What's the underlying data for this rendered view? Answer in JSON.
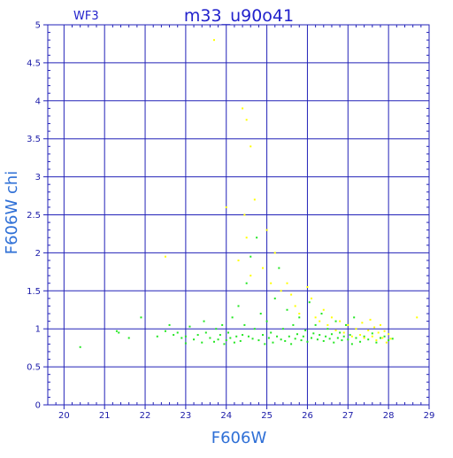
{
  "chart_data": {
    "type": "scatter",
    "title": "m33_u90o41",
    "chip_label": "WF3",
    "xlabel": "F606W",
    "ylabel": "F606W chi",
    "xlim": [
      19.6,
      29.0
    ],
    "ylim": [
      0,
      5
    ],
    "x_ticks": [
      "20",
      "21",
      "22",
      "23",
      "24",
      "25",
      "26",
      "27",
      "28",
      "29"
    ],
    "y_ticks": [
      "0",
      "0.5",
      "1",
      "1.5",
      "2",
      "2.5",
      "3",
      "3.5",
      "4",
      "4.5",
      "5"
    ],
    "grid": true,
    "colors": {
      "axes": "#2222b8",
      "grid": "#2222b8",
      "series_bright": "#22e622",
      "series_faint": "#ffff00"
    },
    "series": [
      {
        "color": "#22e622",
        "points": [
          [
            20.4,
            0.76
          ],
          [
            21.3,
            0.97
          ],
          [
            21.35,
            0.95
          ],
          [
            21.6,
            0.88
          ],
          [
            21.9,
            1.15
          ],
          [
            22.3,
            0.9
          ],
          [
            22.5,
            0.97
          ],
          [
            22.6,
            1.05
          ],
          [
            22.7,
            0.92
          ],
          [
            22.8,
            0.95
          ],
          [
            22.9,
            0.88
          ],
          [
            23.0,
            0.9
          ],
          [
            23.0,
            0.81
          ],
          [
            23.1,
            1.03
          ],
          [
            23.2,
            0.86
          ],
          [
            23.3,
            0.92
          ],
          [
            23.4,
            0.82
          ],
          [
            23.45,
            1.1
          ],
          [
            23.5,
            0.95
          ],
          [
            23.6,
            0.88
          ],
          [
            23.7,
            0.83
          ],
          [
            23.75,
            1.0
          ],
          [
            23.8,
            0.86
          ],
          [
            23.85,
            0.92
          ],
          [
            23.9,
            1.05
          ],
          [
            23.95,
            0.8
          ],
          [
            24.0,
            0.85
          ],
          [
            24.05,
            0.95
          ],
          [
            24.1,
            0.88
          ],
          [
            24.15,
            1.15
          ],
          [
            24.2,
            0.82
          ],
          [
            24.25,
            0.9
          ],
          [
            24.3,
            1.3
          ],
          [
            24.35,
            0.84
          ],
          [
            24.4,
            0.92
          ],
          [
            24.45,
            1.05
          ],
          [
            24.5,
            1.6
          ],
          [
            24.55,
            0.9
          ],
          [
            24.6,
            1.95
          ],
          [
            24.65,
            0.87
          ],
          [
            24.7,
            1.0
          ],
          [
            24.75,
            2.2
          ],
          [
            24.8,
            0.85
          ],
          [
            24.85,
            1.2
          ],
          [
            24.9,
            0.92
          ],
          [
            24.95,
            0.8
          ],
          [
            25.0,
            1.1
          ],
          [
            25.05,
            0.88
          ],
          [
            25.1,
            0.95
          ],
          [
            25.15,
            0.82
          ],
          [
            25.2,
            1.4
          ],
          [
            25.25,
            0.9
          ],
          [
            25.3,
            1.8
          ],
          [
            25.35,
            0.86
          ],
          [
            25.4,
            1.0
          ],
          [
            25.45,
            0.84
          ],
          [
            25.5,
            1.25
          ],
          [
            25.55,
            0.9
          ],
          [
            25.6,
            0.8
          ],
          [
            25.65,
            1.05
          ],
          [
            25.7,
            0.87
          ],
          [
            25.75,
            0.93
          ],
          [
            25.8,
            1.15
          ],
          [
            25.85,
            0.85
          ],
          [
            25.9,
            0.9
          ],
          [
            25.95,
            0.98
          ],
          [
            26.0,
            0.83
          ],
          [
            26.05,
            1.35
          ],
          [
            26.1,
            0.88
          ],
          [
            26.15,
            0.94
          ],
          [
            26.2,
            1.05
          ],
          [
            26.25,
            0.86
          ],
          [
            26.3,
            0.92
          ],
          [
            26.35,
            1.2
          ],
          [
            26.4,
            0.84
          ],
          [
            26.45,
            0.9
          ],
          [
            26.5,
            1.0
          ],
          [
            26.55,
            0.87
          ],
          [
            26.6,
            0.93
          ],
          [
            26.65,
            0.82
          ],
          [
            26.7,
            1.1
          ],
          [
            26.75,
            0.88
          ],
          [
            26.8,
            0.95
          ],
          [
            26.85,
            0.85
          ],
          [
            26.9,
            0.9
          ],
          [
            26.95,
            1.05
          ],
          [
            27.0,
            0.86
          ],
          [
            27.05,
            0.92
          ],
          [
            27.1,
            0.8
          ],
          [
            27.15,
            1.15
          ],
          [
            27.2,
            0.88
          ],
          [
            27.3,
            0.83
          ],
          [
            27.4,
            0.9
          ],
          [
            27.5,
            0.86
          ],
          [
            27.6,
            0.94
          ],
          [
            27.7,
            0.82
          ],
          [
            27.8,
            0.88
          ],
          [
            27.9,
            0.9
          ],
          [
            28.0,
            0.85
          ],
          [
            28.1,
            0.87
          ]
        ]
      },
      {
        "color": "#ffff00",
        "points": [
          [
            22.5,
            1.95
          ],
          [
            23.7,
            4.8
          ],
          [
            24.0,
            2.6
          ],
          [
            24.4,
            3.9
          ],
          [
            24.5,
            3.75
          ],
          [
            24.6,
            3.4
          ],
          [
            24.45,
            2.5
          ],
          [
            24.5,
            2.2
          ],
          [
            24.7,
            2.7
          ],
          [
            24.3,
            1.9
          ],
          [
            24.6,
            1.7
          ],
          [
            24.9,
            1.8
          ],
          [
            25.0,
            2.3
          ],
          [
            25.1,
            1.6
          ],
          [
            25.2,
            2.0
          ],
          [
            25.35,
            1.5
          ],
          [
            25.5,
            1.6
          ],
          [
            25.6,
            1.45
          ],
          [
            25.7,
            1.3
          ],
          [
            25.8,
            1.2
          ],
          [
            26.0,
            1.55
          ],
          [
            26.1,
            1.4
          ],
          [
            26.2,
            1.15
          ],
          [
            26.3,
            1.1
          ],
          [
            26.4,
            1.25
          ],
          [
            26.5,
            1.05
          ],
          [
            26.6,
            1.15
          ],
          [
            26.7,
            0.98
          ],
          [
            26.8,
            1.1
          ],
          [
            26.9,
            0.95
          ],
          [
            27.0,
            1.05
          ],
          [
            27.1,
            0.9
          ],
          [
            27.2,
            1.0
          ],
          [
            27.3,
            0.92
          ],
          [
            27.35,
            1.08
          ],
          [
            27.4,
            0.88
          ],
          [
            27.5,
            0.98
          ],
          [
            27.55,
            1.12
          ],
          [
            27.6,
            0.9
          ],
          [
            27.65,
            1.02
          ],
          [
            27.7,
            0.85
          ],
          [
            27.75,
            0.95
          ],
          [
            27.8,
            1.05
          ],
          [
            27.85,
            0.88
          ],
          [
            27.9,
            0.97
          ],
          [
            27.95,
            0.82
          ],
          [
            28.0,
            0.93
          ],
          [
            28.05,
            0.87
          ],
          [
            28.7,
            1.15
          ]
        ]
      }
    ]
  }
}
